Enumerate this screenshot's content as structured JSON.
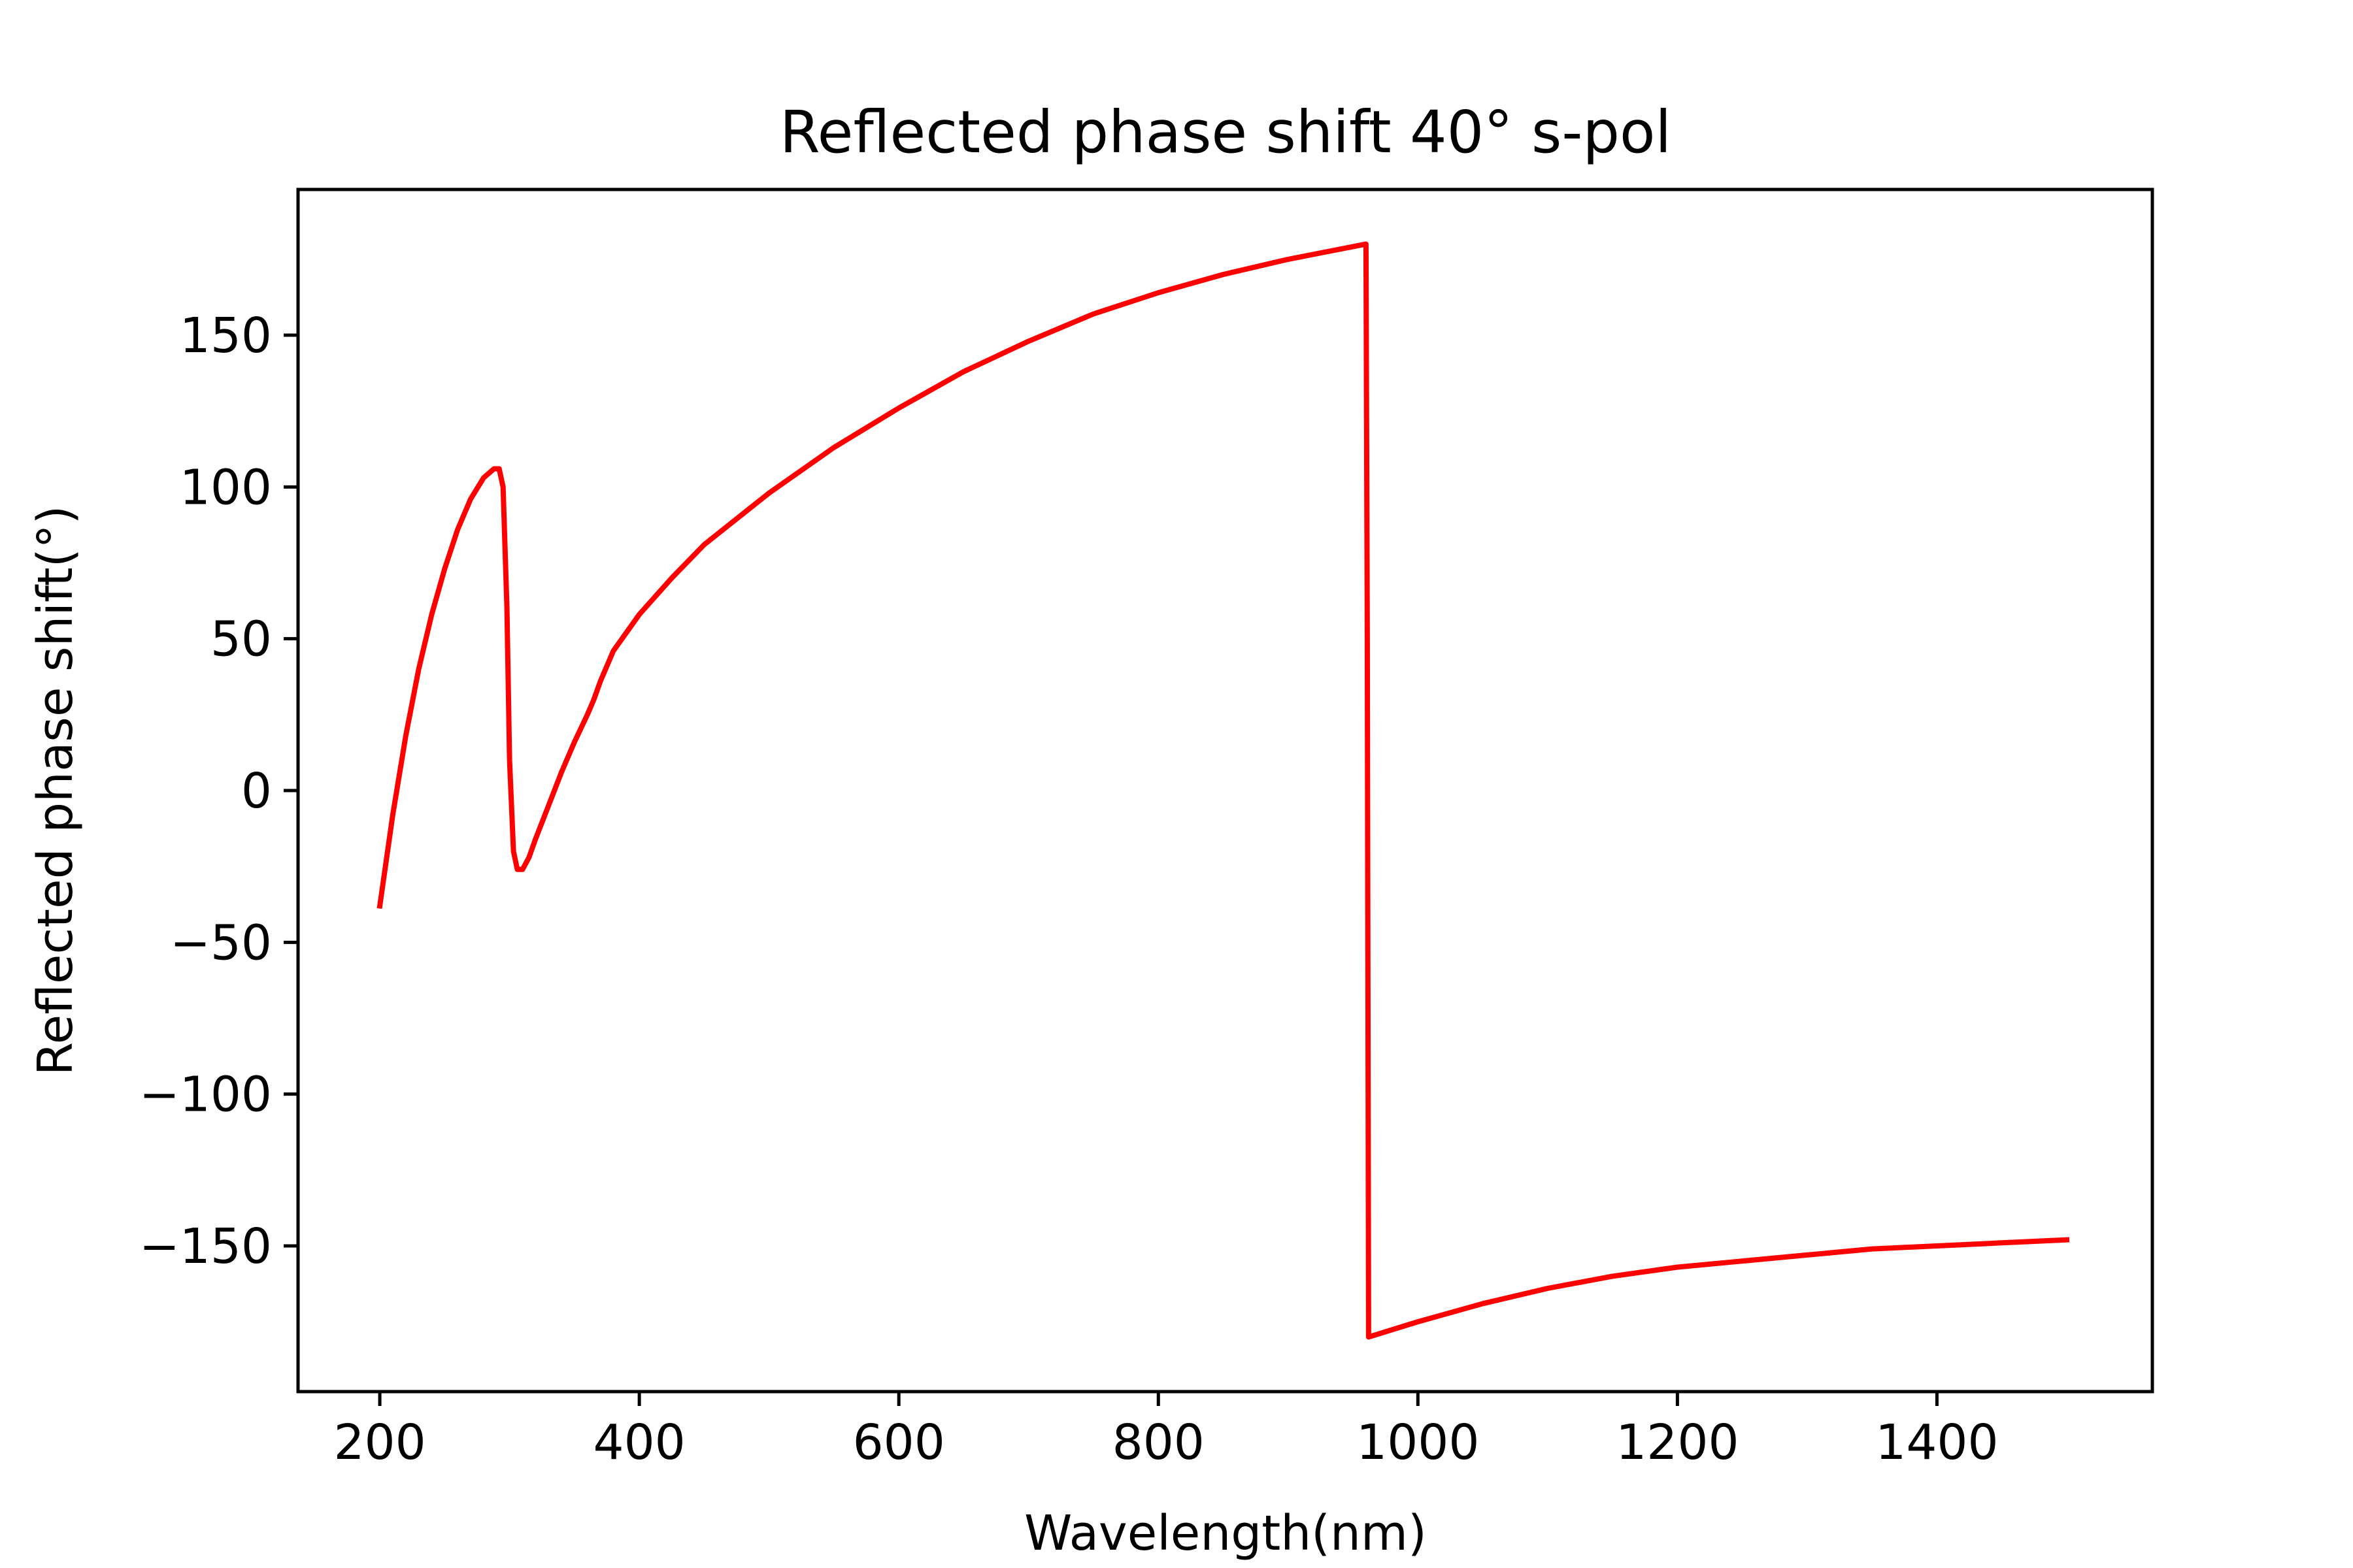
{
  "chart_data": {
    "type": "line",
    "title": "Reflected phase shift 40° s-pol",
    "xlabel": "Wavelength(nm)",
    "ylabel": "Reflected phase shift(°)",
    "xlim": [
      137,
      1566
    ],
    "ylim": [
      -198,
      198
    ],
    "xticks": [
      200,
      400,
      600,
      800,
      1000,
      1200,
      1400
    ],
    "yticks": [
      -150,
      -100,
      -50,
      0,
      50,
      100,
      150
    ],
    "xtick_labels": [
      "200",
      "400",
      "600",
      "800",
      "1000",
      "1200",
      "1400"
    ],
    "ytick_labels": [
      "−150",
      "−100",
      "−50",
      "0",
      "50",
      "100",
      "150"
    ],
    "grid": false,
    "legend": false,
    "series": [
      {
        "color": "#ff0000",
        "x": [
          200,
          210,
          220,
          230,
          240,
          250,
          260,
          270,
          280,
          288,
          292,
          295,
          298,
          300,
          303,
          306,
          310,
          315,
          320,
          330,
          340,
          350,
          360,
          365,
          370,
          380,
          400,
          425,
          450,
          500,
          550,
          600,
          650,
          700,
          750,
          800,
          850,
          900,
          960,
          961,
          962,
          1000,
          1050,
          1100,
          1150,
          1200,
          1250,
          1300,
          1350,
          1400,
          1450,
          1500
        ],
        "y": [
          -38,
          -8,
          18,
          40,
          58,
          73,
          86,
          96,
          103,
          106,
          106,
          100,
          60,
          10,
          -20,
          -26,
          -26,
          -22,
          -16,
          -5,
          6,
          16,
          25,
          30,
          36,
          46,
          58,
          70,
          81,
          98,
          113,
          126,
          138,
          148,
          157,
          164,
          170,
          175,
          180,
          50,
          -180,
          -175,
          -169,
          -164,
          -160,
          -157,
          -155,
          -153,
          -151,
          -150,
          -149,
          -148
        ]
      }
    ]
  }
}
